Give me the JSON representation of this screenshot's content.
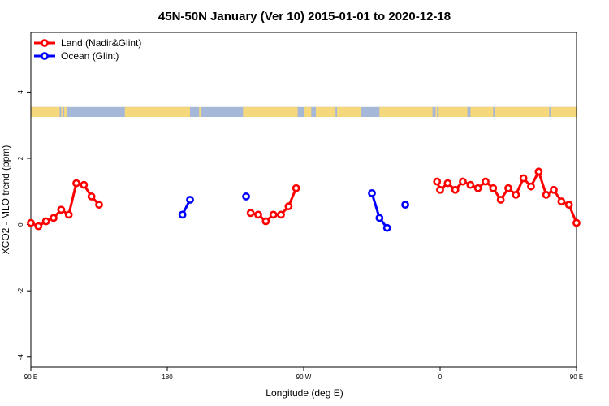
{
  "chart_data": {
    "type": "line",
    "title": "45N-50N January (Ver 10)   2015-01-01 to 2020-12-18",
    "xlabel": "Longitude (deg E)",
    "ylabel": "XCO2 - MLO trend (ppm)",
    "xlim": [
      90,
      450
    ],
    "ylim": [
      -4.3,
      5.8
    ],
    "x_ticks": [
      {
        "value": 90,
        "label": "90 E"
      },
      {
        "value": 180,
        "label": "180"
      },
      {
        "value": 270,
        "label": "90 W"
      },
      {
        "value": 360,
        "label": "0"
      },
      {
        "value": 450,
        "label": "90 E"
      },
      {
        "value": 540,
        "label": "180"
      }
    ],
    "y_ticks": [
      {
        "value": -4,
        "label": "-4"
      },
      {
        "value": -2,
        "label": "-2"
      },
      {
        "value": 0,
        "label": "0"
      },
      {
        "value": 2,
        "label": "2"
      },
      {
        "value": 4,
        "label": "4"
      }
    ],
    "map_strip": {
      "y_bottom": 3.25,
      "y_top": 3.55,
      "land_color": "#f5d77c",
      "ocean_color": "#a5b8d8"
    },
    "legend": {
      "position": "top-left"
    },
    "series": [
      {
        "name": "Land (Nadir&Glint)",
        "color": "#ff0000",
        "segments": [
          [
            [
              90,
              0.05
            ],
            [
              95,
              -0.05
            ],
            [
              100,
              0.1
            ],
            [
              105,
              0.2
            ],
            [
              110,
              0.45
            ],
            [
              115,
              0.3
            ],
            [
              120,
              1.25
            ],
            [
              125,
              1.2
            ],
            [
              130,
              0.85
            ],
            [
              135,
              0.6
            ]
          ],
          [
            [
              235,
              0.35
            ],
            [
              240,
              0.3
            ],
            [
              245,
              0.1
            ],
            [
              250,
              0.3
            ],
            [
              255,
              0.3
            ],
            [
              260,
              0.55
            ],
            [
              265,
              1.1
            ]
          ],
          [
            [
              358,
              1.3
            ],
            [
              360,
              1.05
            ],
            [
              365,
              1.25
            ],
            [
              370,
              1.05
            ],
            [
              375,
              1.3
            ],
            [
              380,
              1.2
            ],
            [
              385,
              1.1
            ],
            [
              390,
              1.3
            ],
            [
              395,
              1.1
            ],
            [
              400,
              0.75
            ],
            [
              405,
              1.1
            ],
            [
              410,
              0.9
            ],
            [
              415,
              1.4
            ],
            [
              420,
              1.15
            ],
            [
              425,
              1.6
            ],
            [
              430,
              0.9
            ],
            [
              435,
              1.05
            ],
            [
              440,
              0.7
            ],
            [
              445,
              0.6
            ],
            [
              450,
              0.05
            ],
            [
              455,
              -0.05
            ],
            [
              460,
              0.1
            ],
            [
              465,
              0.2
            ],
            [
              470,
              0.45
            ],
            [
              475,
              0.3
            ],
            [
              480,
              1.25
            ],
            [
              485,
              1.2
            ],
            [
              490,
              0.85
            ],
            [
              495,
              0.6
            ]
          ]
        ]
      },
      {
        "name": "Ocean (Glint)",
        "color": "#0000ff",
        "segments": [
          [
            [
              190,
              0.3
            ],
            [
              195,
              0.75
            ]
          ],
          [
            [
              232,
              0.85
            ]
          ],
          [
            [
              315,
              0.95
            ],
            [
              320,
              0.2
            ],
            [
              325,
              -0.1
            ]
          ],
          [
            [
              337,
              0.6
            ]
          ]
        ]
      }
    ]
  }
}
